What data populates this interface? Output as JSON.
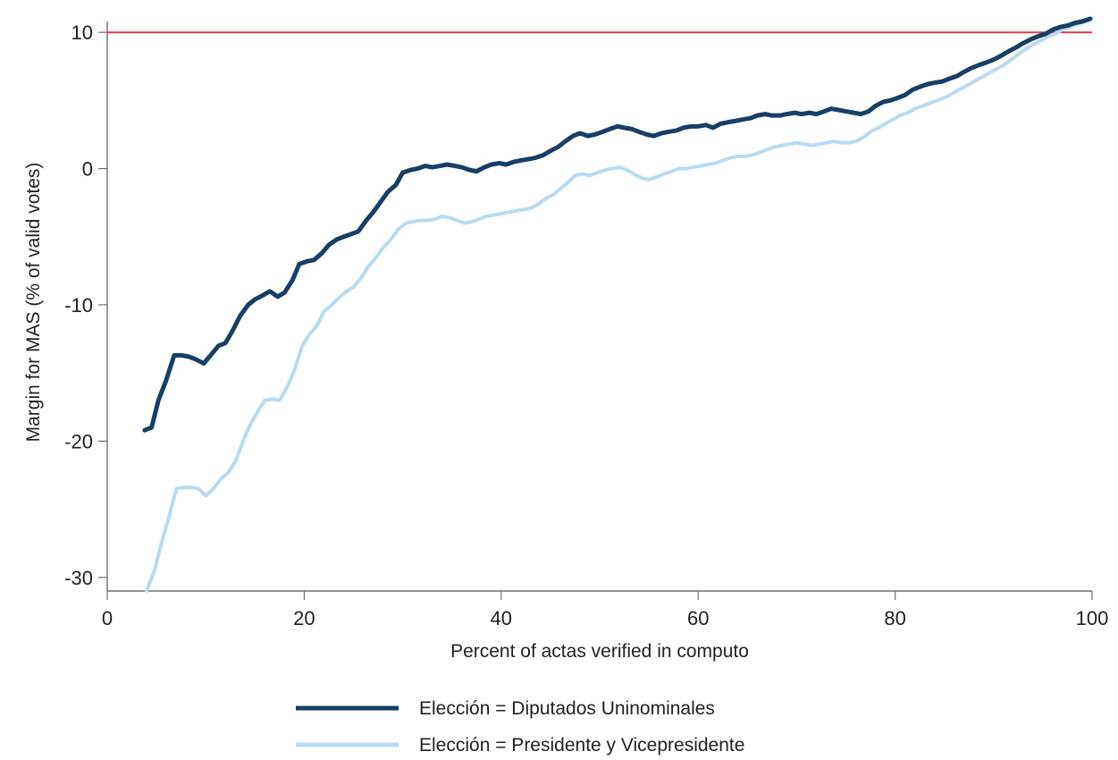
{
  "chart_data": {
    "type": "line",
    "xlabel": "Percent of actas verified in computo",
    "ylabel": "Margin for MAS (% of valid votes)",
    "xlim": [
      0,
      100
    ],
    "ylim": [
      -31,
      10.8
    ],
    "x_ticks": [
      {
        "value": 0,
        "label": "0"
      },
      {
        "value": 20,
        "label": "20"
      },
      {
        "value": 40,
        "label": "40"
      },
      {
        "value": 60,
        "label": "60"
      },
      {
        "value": 80,
        "label": "80"
      },
      {
        "value": 100,
        "label": "100"
      }
    ],
    "y_ticks": [
      {
        "value": 10,
        "label": "10"
      },
      {
        "value": 0,
        "label": "0"
      },
      {
        "value": -10,
        "label": "-10"
      },
      {
        "value": -20,
        "label": "-20"
      },
      {
        "value": -30,
        "label": "-30"
      }
    ],
    "reference_line": {
      "y": 10,
      "color": "#e5374a"
    },
    "legend_placement": "bottom",
    "grid": false,
    "series": [
      {
        "name": "Elección = Diputados Uninominales",
        "color": "#173f67",
        "x": [
          3.8,
          4.5,
          5.2,
          6.0,
          6.8,
          7.5,
          8.3,
          9.0,
          9.8,
          10.5,
          11.3,
          12.0,
          12.8,
          13.5,
          14.3,
          15.0,
          15.8,
          16.5,
          17.3,
          18.0,
          18.8,
          19.5,
          20.3,
          21.0,
          21.8,
          22.5,
          23.3,
          24.0,
          24.8,
          25.5,
          26.3,
          27.0,
          27.8,
          28.5,
          29.3,
          30.0,
          30.8,
          31.5,
          32.3,
          33.0,
          33.8,
          34.5,
          35.3,
          36.0,
          36.8,
          37.5,
          38.3,
          39.0,
          39.8,
          40.5,
          41.3,
          42.0,
          42.8,
          43.5,
          44.3,
          45.0,
          45.8,
          46.5,
          47.3,
          48.0,
          48.8,
          49.5,
          50.3,
          51.0,
          51.8,
          52.5,
          53.3,
          54.0,
          54.8,
          55.5,
          56.3,
          57.0,
          57.8,
          58.5,
          59.3,
          60.0,
          60.8,
          61.5,
          62.3,
          63.0,
          63.8,
          64.5,
          65.3,
          66.0,
          66.8,
          67.5,
          68.3,
          69.0,
          69.8,
          70.5,
          71.3,
          72.0,
          72.8,
          73.5,
          74.3,
          75.0,
          75.8,
          76.5,
          77.3,
          78.0,
          78.8,
          79.5,
          80.3,
          81.0,
          81.8,
          82.5,
          83.3,
          84.0,
          84.8,
          85.5,
          86.3,
          87.0,
          87.8,
          88.5,
          89.3,
          90.0,
          90.8,
          91.5,
          92.3,
          93.0,
          93.8,
          94.5,
          95.3,
          96.0,
          96.8,
          97.5,
          98.3,
          99.0,
          99.8
        ],
        "y": [
          -19.2,
          -19.0,
          -17.0,
          -15.5,
          -13.7,
          -13.7,
          -13.8,
          -14.0,
          -14.3,
          -13.7,
          -13.0,
          -12.8,
          -11.8,
          -10.8,
          -10.0,
          -9.6,
          -9.3,
          -9.0,
          -9.4,
          -9.1,
          -8.2,
          -7.0,
          -6.8,
          -6.7,
          -6.2,
          -5.6,
          -5.2,
          -5.0,
          -4.8,
          -4.6,
          -3.8,
          -3.2,
          -2.4,
          -1.7,
          -1.2,
          -0.3,
          -0.1,
          0.0,
          0.2,
          0.1,
          0.2,
          0.3,
          0.2,
          0.1,
          -0.1,
          -0.2,
          0.1,
          0.3,
          0.4,
          0.3,
          0.5,
          0.6,
          0.7,
          0.8,
          1.0,
          1.3,
          1.6,
          2.0,
          2.4,
          2.6,
          2.4,
          2.5,
          2.7,
          2.9,
          3.1,
          3.0,
          2.9,
          2.7,
          2.5,
          2.4,
          2.6,
          2.7,
          2.8,
          3.0,
          3.1,
          3.1,
          3.2,
          3.0,
          3.3,
          3.4,
          3.5,
          3.6,
          3.7,
          3.9,
          4.0,
          3.9,
          3.9,
          4.0,
          4.1,
          4.0,
          4.1,
          4.0,
          4.2,
          4.4,
          4.3,
          4.2,
          4.1,
          4.0,
          4.2,
          4.6,
          4.9,
          5.0,
          5.2,
          5.4,
          5.8,
          6.0,
          6.2,
          6.3,
          6.4,
          6.6,
          6.8,
          7.1,
          7.4,
          7.6,
          7.8,
          8.0,
          8.3,
          8.6,
          8.9,
          9.2,
          9.5,
          9.7,
          9.9,
          10.2,
          10.4,
          10.5,
          10.7,
          10.8,
          11.0
        ]
      },
      {
        "name": "Elección = Presidente y Vicepresidente",
        "color": "#b9daf0",
        "x": [
          4.0,
          4.8,
          5.5,
          6.3,
          7.0,
          7.8,
          8.5,
          9.3,
          10.0,
          10.8,
          11.5,
          12.3,
          13.0,
          13.8,
          14.5,
          15.3,
          16.0,
          16.8,
          17.5,
          18.3,
          19.0,
          19.8,
          20.5,
          21.3,
          22.0,
          22.8,
          23.5,
          24.3,
          25.0,
          25.8,
          26.5,
          27.3,
          28.0,
          28.8,
          29.5,
          30.3,
          31.0,
          31.8,
          32.5,
          33.3,
          34.0,
          34.8,
          35.5,
          36.3,
          37.0,
          37.8,
          38.5,
          39.3,
          40.0,
          40.8,
          41.5,
          42.3,
          43.0,
          43.8,
          44.5,
          45.3,
          46.0,
          46.8,
          47.5,
          48.3,
          49.0,
          49.8,
          50.5,
          51.3,
          52.0,
          52.8,
          53.5,
          54.3,
          55.0,
          55.8,
          56.5,
          57.3,
          58.0,
          58.8,
          59.5,
          60.3,
          61.0,
          61.8,
          62.5,
          63.3,
          64.0,
          64.8,
          65.5,
          66.3,
          67.0,
          67.8,
          68.5,
          69.3,
          70.0,
          70.8,
          71.5,
          72.3,
          73.0,
          73.8,
          74.5,
          75.3,
          76.0,
          76.8,
          77.5,
          78.3,
          79.0,
          79.8,
          80.5,
          81.3,
          82.0,
          82.8,
          83.5,
          84.3,
          85.0,
          85.8,
          86.5,
          87.3,
          88.0,
          88.8,
          89.5,
          90.3,
          91.0,
          91.8,
          92.5,
          93.3,
          94.0,
          94.8,
          95.5,
          96.3,
          97.0,
          97.8,
          98.5,
          99.3,
          100.0
        ],
        "y": [
          -31.0,
          -29.5,
          -27.5,
          -25.5,
          -23.5,
          -23.4,
          -23.4,
          -23.5,
          -24.0,
          -23.5,
          -22.8,
          -22.3,
          -21.5,
          -20.0,
          -18.8,
          -17.8,
          -17.0,
          -16.9,
          -17.0,
          -16.0,
          -14.8,
          -13.0,
          -12.2,
          -11.5,
          -10.5,
          -10.0,
          -9.5,
          -9.0,
          -8.7,
          -8.0,
          -7.2,
          -6.5,
          -5.8,
          -5.2,
          -4.5,
          -4.0,
          -3.9,
          -3.8,
          -3.8,
          -3.7,
          -3.5,
          -3.6,
          -3.8,
          -4.0,
          -3.9,
          -3.7,
          -3.5,
          -3.4,
          -3.3,
          -3.2,
          -3.1,
          -3.0,
          -2.9,
          -2.6,
          -2.2,
          -1.9,
          -1.5,
          -1.0,
          -0.5,
          -0.4,
          -0.5,
          -0.3,
          -0.1,
          0.0,
          0.1,
          -0.1,
          -0.4,
          -0.7,
          -0.8,
          -0.6,
          -0.4,
          -0.2,
          0.0,
          0.0,
          0.1,
          0.2,
          0.3,
          0.4,
          0.6,
          0.8,
          0.9,
          0.9,
          1.0,
          1.2,
          1.4,
          1.6,
          1.7,
          1.8,
          1.9,
          1.8,
          1.7,
          1.8,
          1.9,
          2.0,
          1.9,
          1.9,
          2.0,
          2.3,
          2.7,
          3.0,
          3.3,
          3.6,
          3.9,
          4.1,
          4.4,
          4.6,
          4.8,
          5.0,
          5.2,
          5.5,
          5.8,
          6.1,
          6.4,
          6.7,
          7.0,
          7.3,
          7.6,
          8.0,
          8.4,
          8.8,
          9.1,
          9.4,
          9.7,
          9.9,
          10.2,
          10.4,
          10.6,
          10.8,
          11.0
        ]
      }
    ]
  }
}
